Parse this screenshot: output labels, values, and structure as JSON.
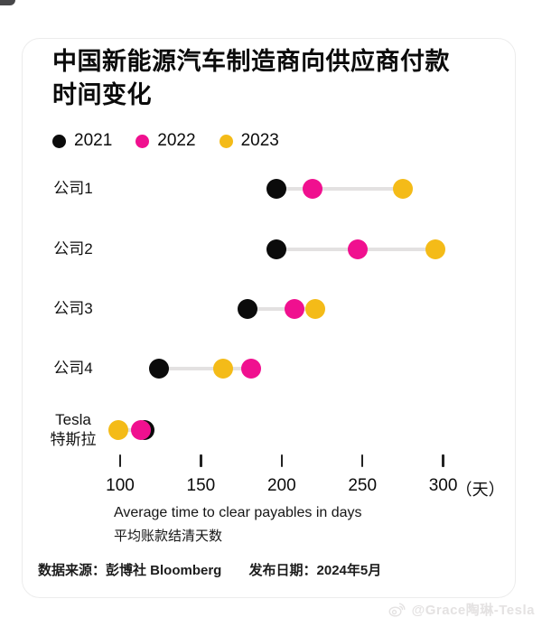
{
  "title": {
    "line1": "中国新能源汽车制造商向供应商付款",
    "line2": "时间变化"
  },
  "chart_data": {
    "type": "scatter",
    "subtype": "dumbbell-dot-plot",
    "categories": [
      {
        "label": "公司1"
      },
      {
        "label": "公司2"
      },
      {
        "label": "公司3"
      },
      {
        "label": "公司4"
      },
      {
        "label": "Tesla",
        "sublabel": "特斯拉"
      }
    ],
    "series": [
      {
        "name": "2021",
        "color": "#0b0b0b",
        "values": [
          197,
          197,
          179,
          124,
          115
        ]
      },
      {
        "name": "2022",
        "color": "#f0108f",
        "values": [
          219,
          247,
          208,
          181,
          113
        ]
      },
      {
        "name": "2023",
        "color": "#f4bb18",
        "values": [
          275,
          295,
          221,
          164,
          99
        ]
      }
    ],
    "x_ticks": [
      100,
      150,
      200,
      250,
      300
    ],
    "x_unit": "（天）",
    "xlim": [
      100,
      300
    ],
    "xlabel": "Average time to clear payables in days",
    "xlabel_zh": "平均账款结清天数",
    "legend_position": "top-left",
    "grid": false,
    "connector_color": "#e3e1e1"
  },
  "footer": {
    "source": "数据来源：彭博社 Bloomberg",
    "published": "发布日期：2024年5月"
  },
  "watermark": {
    "icon": "weibo-icon",
    "text": "@Grace陶琳-Tesla"
  }
}
